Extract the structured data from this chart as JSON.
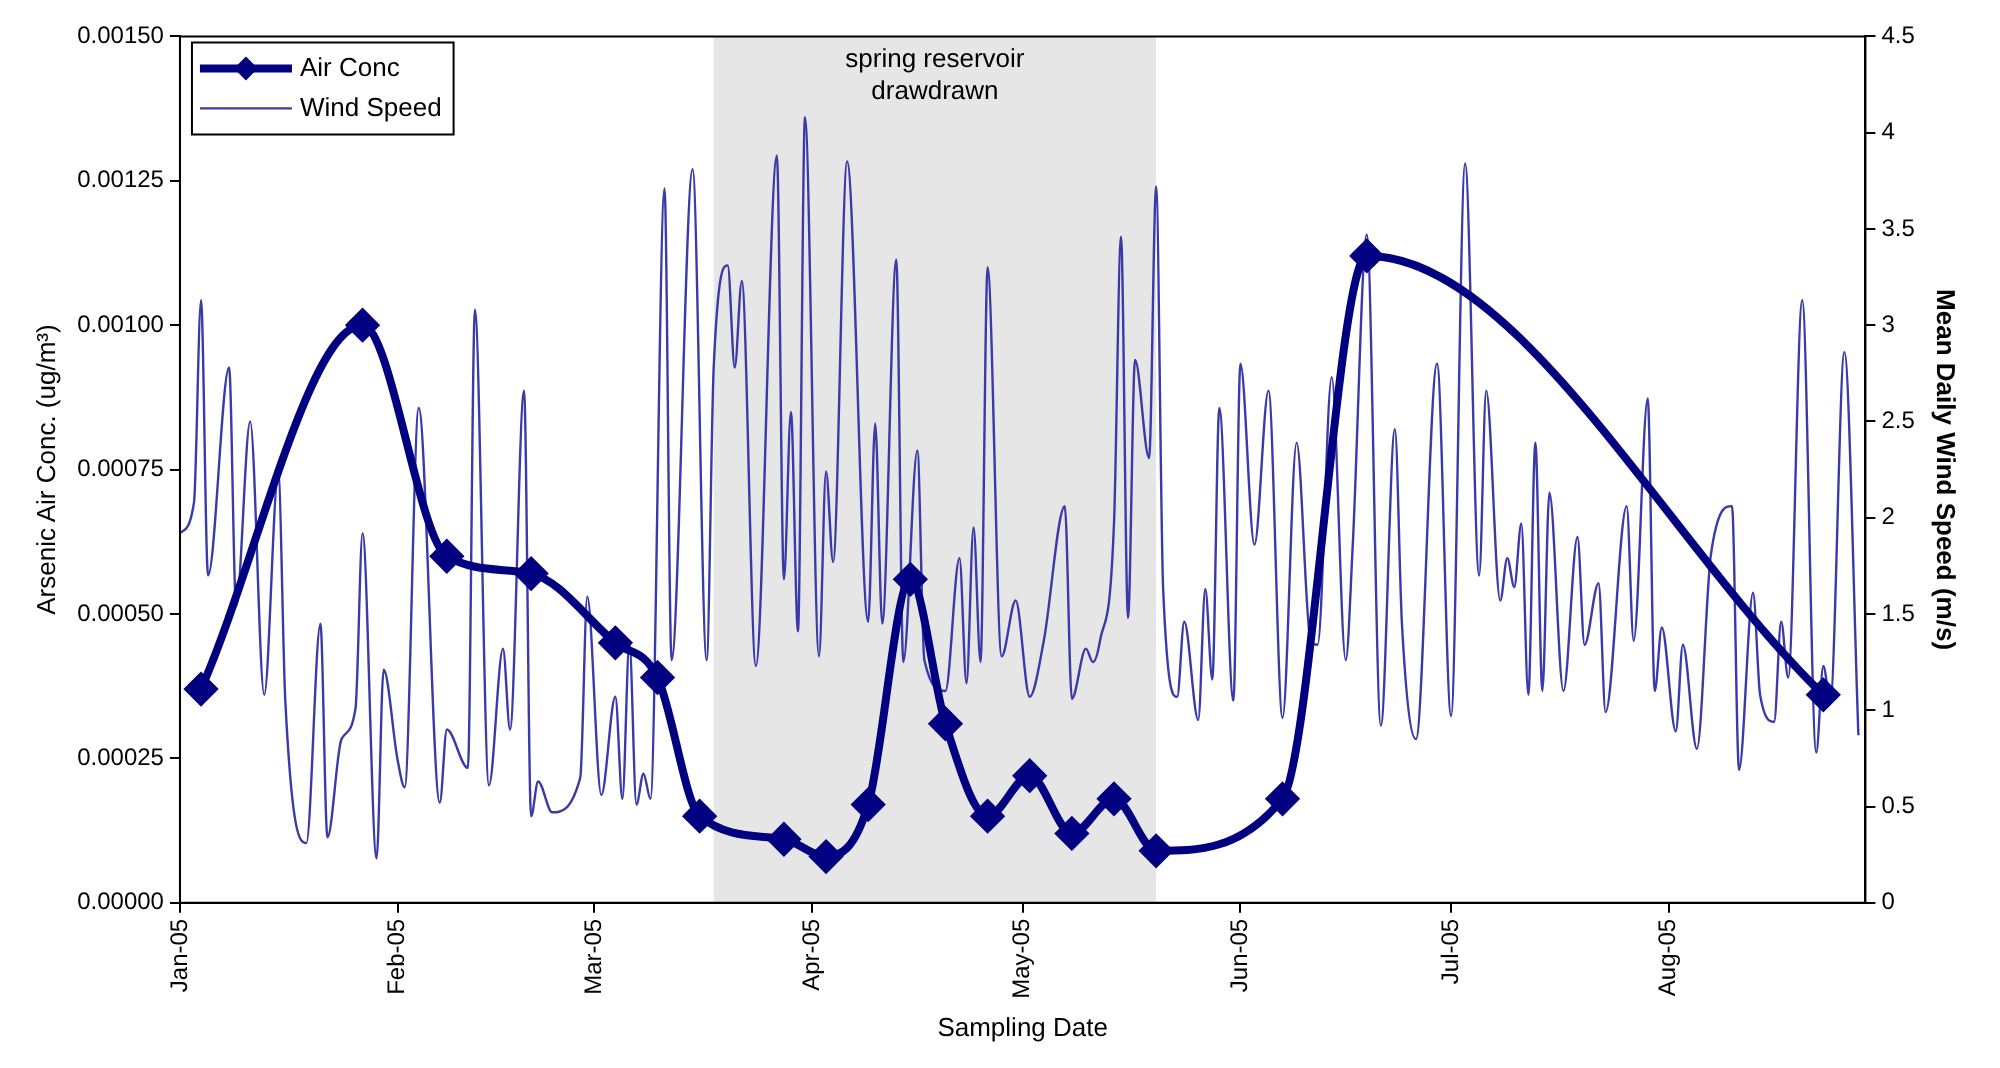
{
  "chart_data": {
    "type": "line",
    "xlabel": "Sampling Date",
    "ylabel": "Arsenic Air Conc. (ug/m³)",
    "y2label": "Mean Daily Wind Speed (m/s)",
    "xlim": [
      "2005-01-01",
      "2005-08-29"
    ],
    "xticks": [
      {
        "value": "2005-01-01",
        "label": "Jan-05"
      },
      {
        "value": "2005-02-01",
        "label": "Feb-05"
      },
      {
        "value": "2005-03-01",
        "label": "Mar-05"
      },
      {
        "value": "2005-04-01",
        "label": "Apr-05"
      },
      {
        "value": "2005-05-01",
        "label": "May-05"
      },
      {
        "value": "2005-06-01",
        "label": "Jun-05"
      },
      {
        "value": "2005-07-01",
        "label": "Jul-05"
      },
      {
        "value": "2005-08-01",
        "label": "Aug-05"
      }
    ],
    "ylim": [
      0,
      0.0015
    ],
    "yticks": [
      {
        "value": 0,
        "label": "0.00000"
      },
      {
        "value": 0.00025,
        "label": "0.00025"
      },
      {
        "value": 0.0005,
        "label": "0.00050"
      },
      {
        "value": 0.00075,
        "label": "0.00075"
      },
      {
        "value": 0.001,
        "label": "0.00100"
      },
      {
        "value": 0.00125,
        "label": "0.00125"
      },
      {
        "value": 0.0015,
        "label": "0.00150"
      }
    ],
    "y2lim": [
      0,
      4.5
    ],
    "y2ticks": [
      0,
      0.5,
      1,
      1.5,
      2,
      2.5,
      3,
      3.5,
      4,
      4.5
    ],
    "legend": "top left",
    "bands": [
      {
        "axis": "x",
        "from": "2005-03-18",
        "to": "2005-05-20",
        "label": "spring reservoir drawdrawn",
        "color": "#e6e6e6"
      }
    ],
    "series": [
      {
        "name": "Air Conc",
        "color": "#000080",
        "marker": "diamond",
        "line_style": "solid",
        "x": [
          "2005-01-04",
          "2005-01-27",
          "2005-02-08",
          "2005-02-20",
          "2005-03-04",
          "2005-03-10",
          "2005-03-16",
          "2005-03-28",
          "2005-04-03",
          "2005-04-09",
          "2005-04-15",
          "2005-04-20",
          "2005-04-26",
          "2005-05-02",
          "2005-05-08",
          "2005-05-14",
          "2005-05-20",
          "2005-06-07",
          "2005-06-19",
          "2005-08-23"
        ],
        "values": [
          0.00037,
          0.001,
          0.0006,
          0.00057,
          0.00045,
          0.00039,
          0.00015,
          0.00011,
          8e-05,
          0.00017,
          0.00056,
          0.00031,
          0.00015,
          0.00022,
          0.00012,
          0.00018,
          9e-05,
          0.00018,
          0.00112,
          0.00036
        ]
      },
      {
        "name": "Wind Speed",
        "color": "#3a3aa8",
        "marker": "none",
        "line_style": "solid",
        "axis": "y2",
        "x": [
          "2005-01-01",
          "2005-01-03",
          "2005-01-04",
          "2005-01-05",
          "2005-01-08",
          "2005-01-09",
          "2005-01-11",
          "2005-01-13",
          "2005-01-15",
          "2005-01-16",
          "2005-01-19",
          "2005-01-21",
          "2005-01-22",
          "2005-01-24",
          "2005-01-26",
          "2005-01-27",
          "2005-01-29",
          "2005-01-30",
          "2005-02-01",
          "2005-02-02",
          "2005-02-04",
          "2005-02-07",
          "2005-02-08",
          "2005-02-11",
          "2005-02-12",
          "2005-02-14",
          "2005-02-16",
          "2005-02-17",
          "2005-02-19",
          "2005-02-20",
          "2005-02-21",
          "2005-02-23",
          "2005-02-27",
          "2005-02-28",
          "2005-03-02",
          "2005-03-04",
          "2005-03-05",
          "2005-03-06",
          "2005-03-07",
          "2005-03-08",
          "2005-03-09",
          "2005-03-11",
          "2005-03-12",
          "2005-03-15",
          "2005-03-17",
          "2005-03-18",
          "2005-03-20",
          "2005-03-21",
          "2005-03-22",
          "2005-03-24",
          "2005-03-27",
          "2005-03-28",
          "2005-03-29",
          "2005-03-30",
          "2005-03-31",
          "2005-04-02",
          "2005-04-03",
          "2005-04-04",
          "2005-04-06",
          "2005-04-09",
          "2005-04-10",
          "2005-04-11",
          "2005-04-13",
          "2005-04-14",
          "2005-04-16",
          "2005-04-17",
          "2005-04-20",
          "2005-04-22",
          "2005-04-23",
          "2005-04-24",
          "2005-04-25",
          "2005-04-26",
          "2005-04-28",
          "2005-04-30",
          "2005-05-02",
          "2005-05-04",
          "2005-05-07",
          "2005-05-08",
          "2005-05-10",
          "2005-05-11",
          "2005-05-12",
          "2005-05-14",
          "2005-05-15",
          "2005-05-16",
          "2005-05-17",
          "2005-05-19",
          "2005-05-20",
          "2005-05-21",
          "2005-05-23",
          "2005-05-24",
          "2005-05-26",
          "2005-05-27",
          "2005-05-28",
          "2005-05-29",
          "2005-05-31",
          "2005-06-01",
          "2005-06-03",
          "2005-06-05",
          "2005-06-07",
          "2005-06-09",
          "2005-06-11",
          "2005-06-12",
          "2005-06-14",
          "2005-06-16",
          "2005-06-17",
          "2005-06-19",
          "2005-06-21",
          "2005-06-23",
          "2005-06-24",
          "2005-06-26",
          "2005-06-29",
          "2005-07-01",
          "2005-07-03",
          "2005-07-05",
          "2005-07-06",
          "2005-07-08",
          "2005-07-09",
          "2005-07-10",
          "2005-07-11",
          "2005-07-12",
          "2005-07-13",
          "2005-07-14",
          "2005-07-15",
          "2005-07-17",
          "2005-07-19",
          "2005-07-20",
          "2005-07-22",
          "2005-07-23",
          "2005-07-26",
          "2005-07-27",
          "2005-07-29",
          "2005-07-30",
          "2005-07-31",
          "2005-08-02",
          "2005-08-03",
          "2005-08-05",
          "2005-08-07",
          "2005-08-10",
          "2005-08-11",
          "2005-08-13",
          "2005-08-14",
          "2005-08-16",
          "2005-08-17",
          "2005-08-18",
          "2005-08-20",
          "2005-08-22",
          "2005-08-23",
          "2005-08-24",
          "2005-08-26",
          "2005-08-28"
        ],
        "values": [
          1.92,
          2.08,
          3.13,
          1.7,
          2.78,
          1.54,
          2.5,
          1.08,
          2.23,
          1.05,
          0.31,
          1.45,
          0.34,
          0.85,
          1.01,
          1.92,
          0.23,
          1.21,
          0.74,
          0.6,
          2.57,
          0.52,
          0.9,
          0.7,
          3.08,
          0.61,
          1.32,
          0.9,
          2.66,
          0.45,
          0.63,
          0.47,
          0.65,
          1.59,
          0.56,
          1.07,
          0.54,
          1.35,
          0.51,
          0.67,
          0.54,
          3.71,
          1.26,
          3.81,
          1.26,
          2.78,
          3.31,
          2.78,
          3.23,
          1.23,
          3.88,
          1.68,
          2.55,
          1.41,
          4.08,
          1.28,
          2.24,
          1.77,
          3.85,
          1.46,
          2.49,
          1.45,
          3.34,
          1.25,
          2.35,
          1.26,
          1.1,
          1.79,
          1.14,
          1.95,
          1.25,
          3.3,
          1.28,
          1.57,
          1.07,
          1.36,
          2.06,
          1.06,
          1.32,
          1.25,
          1.36,
          1.97,
          3.46,
          1.48,
          2.82,
          2.31,
          3.72,
          1.63,
          1.07,
          1.46,
          0.95,
          1.63,
          1.16,
          2.57,
          1.05,
          2.8,
          1.86,
          2.66,
          0.96,
          2.39,
          1.36,
          1.34,
          2.73,
          1.26,
          1.86,
          3.47,
          0.92,
          2.46,
          1.45,
          0.85,
          2.8,
          0.97,
          3.84,
          1.7,
          2.66,
          1.57,
          1.79,
          1.64,
          1.97,
          1.08,
          2.39,
          1.1,
          2.13,
          1.1,
          1.9,
          1.34,
          1.66,
          0.99,
          2.06,
          1.36,
          2.62,
          1.1,
          1.43,
          0.89,
          1.34,
          0.8,
          1.81,
          2.06,
          0.69,
          1.61,
          1.08,
          0.94,
          1.46,
          1.17,
          3.13,
          0.78,
          1.23,
          1.05,
          2.86,
          0.87
        ]
      }
    ]
  }
}
